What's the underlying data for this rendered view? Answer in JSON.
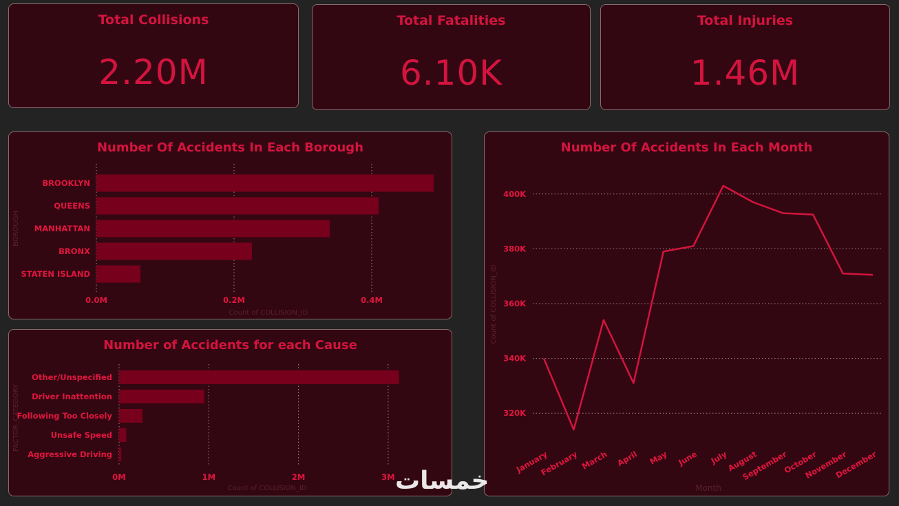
{
  "kpis": [
    {
      "title": "Total Collisions",
      "value": "2.20M"
    },
    {
      "title": "Total Fatalities",
      "value": "6.10K"
    },
    {
      "title": "Total Injuries",
      "value": "1.46M"
    }
  ],
  "colors": {
    "background": "#232323",
    "card": "#330711",
    "accent": "#d3143f",
    "bar": "#77001c",
    "line": "#d3143f"
  },
  "watermark": "خمسات",
  "chart_data": [
    {
      "type": "bar",
      "orientation": "horizontal",
      "title": "Number Of Accidents In Each Borough",
      "xlabel": "Count of COLLISION_ID",
      "ylabel": "BOROUGH",
      "categories": [
        "BROOKLYN",
        "QUEENS",
        "MANHATTAN",
        "BRONX",
        "STATEN ISLAND"
      ],
      "values": [
        490000,
        410000,
        339000,
        226000,
        64000
      ],
      "xlim": [
        0,
        500000
      ],
      "ticks": [
        0,
        200000,
        400000
      ],
      "tick_labels": [
        "0.0M",
        "0.2M",
        "0.4M"
      ],
      "grid": true
    },
    {
      "type": "bar",
      "orientation": "horizontal",
      "title": "Number of Accidents for each Cause",
      "xlabel": "Count of COLLISION_ID",
      "ylabel": "FACTOR_CATEGORY",
      "categories": [
        "Other/Unspecified",
        "Driver Inattention",
        "Following Too Closely",
        "Unsafe Speed",
        "Aggressive Driving"
      ],
      "values": [
        3120000,
        950000,
        260000,
        80000,
        25000
      ],
      "xlim": [
        0,
        3300000
      ],
      "ticks": [
        0,
        1000000,
        2000000,
        3000000
      ],
      "tick_labels": [
        "0M",
        "1M",
        "2M",
        "3M"
      ],
      "grid": true
    },
    {
      "type": "line",
      "title": "Number Of Accidents In Each Month",
      "xlabel": "Month",
      "ylabel": "Count of COLLISION_ID",
      "categories": [
        "January",
        "February",
        "March",
        "April",
        "May",
        "June",
        "July",
        "August",
        "September",
        "October",
        "November",
        "December"
      ],
      "values": [
        340000,
        314000,
        354000,
        331000,
        379000,
        381000,
        403000,
        397000,
        393000,
        392500,
        371000,
        370500
      ],
      "ylim": [
        310000,
        410000
      ],
      "ticks": [
        320000,
        340000,
        360000,
        380000,
        400000
      ],
      "tick_labels": [
        "320K",
        "340K",
        "360K",
        "380K",
        "400K"
      ],
      "grid": true
    }
  ]
}
